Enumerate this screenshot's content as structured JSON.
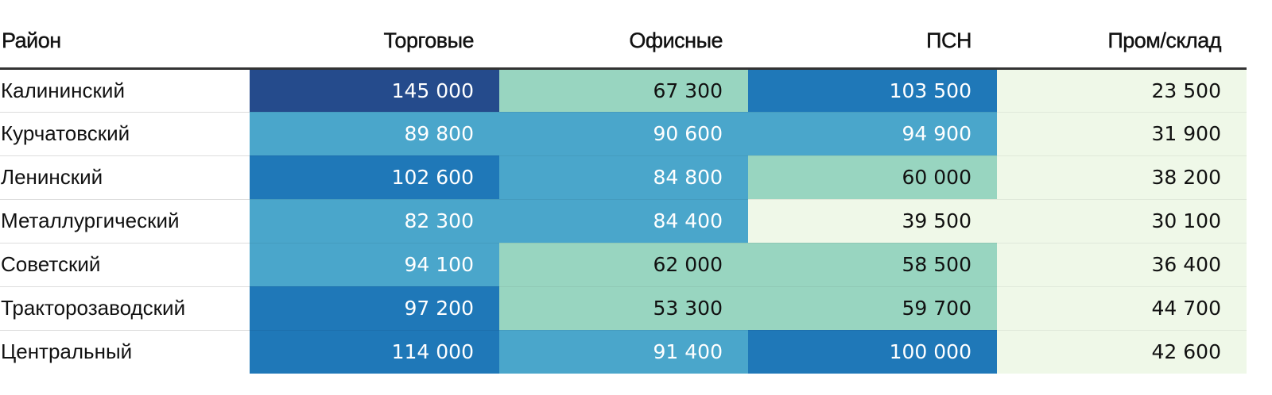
{
  "chart_data": {
    "type": "table",
    "title": "",
    "row_header": "Район",
    "columns": [
      "Торговые",
      "Офисные",
      "ПСН",
      "Пром/склад"
    ],
    "rows": [
      {
        "label": "Калининский",
        "values": [
          145000,
          67300,
          103500,
          23500
        ]
      },
      {
        "label": "Курчатовский",
        "values": [
          89800,
          90600,
          94900,
          31900
        ]
      },
      {
        "label": "Ленинский",
        "values": [
          102600,
          84800,
          60000,
          38200
        ]
      },
      {
        "label": "Металлургический",
        "values": [
          82300,
          84400,
          39500,
          30100
        ]
      },
      {
        "label": "Советский",
        "values": [
          94100,
          62000,
          58500,
          36400
        ]
      },
      {
        "label": "Тракторозаводский",
        "values": [
          97200,
          53300,
          59700,
          44700
        ]
      },
      {
        "label": "Центральный",
        "values": [
          114000,
          91400,
          100000,
          42600
        ]
      }
    ],
    "color_scale": {
      "bins": [
        {
          "min": 0,
          "max": 50000,
          "color": "#eff8e8",
          "text": "#111111"
        },
        {
          "min": 50000,
          "max": 80000,
          "color": "#98d5c0",
          "text": "#111111"
        },
        {
          "min": 80000,
          "max": 95000,
          "color": "#4aa6cb",
          "text": "#ffffff"
        },
        {
          "min": 95000,
          "max": 120000,
          "color": "#1f78b8",
          "text": "#ffffff"
        },
        {
          "min": 120000,
          "max": 1000000,
          "color": "#254b8c",
          "text": "#ffffff"
        }
      ]
    }
  }
}
